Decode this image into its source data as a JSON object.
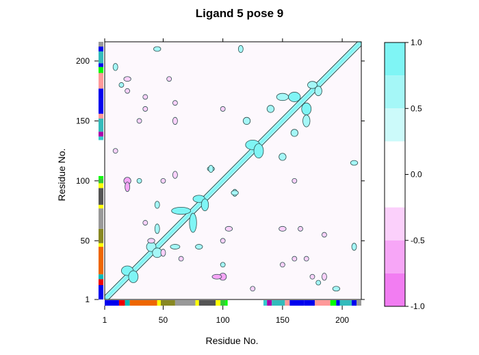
{
  "chart_data": {
    "type": "heatmap",
    "title": "Ligand 5 pose 9",
    "xlabel": "Residue No.",
    "ylabel": "Residue No.",
    "xlim": [
      1,
      216
    ],
    "ylim": [
      1,
      216
    ],
    "x_ticks": [
      1,
      50,
      100,
      150,
      200
    ],
    "y_ticks": [
      1,
      50,
      100,
      150,
      200
    ],
    "colorbar": {
      "range": [
        -1.0,
        1.0
      ],
      "ticks": [
        "1.0",
        "0.5",
        "0.0",
        "-0.5",
        "-1.0"
      ],
      "tick_values": [
        1.0,
        0.5,
        0.0,
        -0.5,
        -1.0
      ],
      "levels": [
        {
          "from": 0.75,
          "to": 1.0,
          "color": "#7ff5f5"
        },
        {
          "from": 0.5,
          "to": 0.75,
          "color": "#a5f7f7"
        },
        {
          "from": 0.25,
          "to": 0.5,
          "color": "#ccfafa"
        },
        {
          "from": -0.25,
          "to": 0.25,
          "color": "#ffffff"
        },
        {
          "from": -0.5,
          "to": -0.25,
          "color": "#fbd0fb"
        },
        {
          "from": -0.75,
          "to": -0.5,
          "color": "#f7a6f7"
        },
        {
          "from": -1.0,
          "to": -0.75,
          "color": "#f27df2"
        }
      ]
    },
    "background_color": "#fdf8fd",
    "contour_line_color": "#2f4f4f",
    "diagonal_band": {
      "from": 1,
      "to": 216,
      "value": 1.0
    },
    "positive_blobs": [
      {
        "x": 20,
        "y": 25,
        "rx": 5,
        "ry": 4,
        "value": 0.9
      },
      {
        "x": 40,
        "y": 45,
        "rx": 4,
        "ry": 4,
        "value": 0.7
      },
      {
        "x": 65,
        "y": 75,
        "rx": 8,
        "ry": 3,
        "value": 0.8
      },
      {
        "x": 80,
        "y": 85,
        "rx": 5,
        "ry": 3,
        "value": 0.8
      },
      {
        "x": 125,
        "y": 130,
        "rx": 6,
        "ry": 4,
        "value": 0.9
      },
      {
        "x": 160,
        "y": 170,
        "rx": 5,
        "ry": 4,
        "value": 0.9
      },
      {
        "x": 175,
        "y": 180,
        "rx": 4,
        "ry": 3,
        "value": 0.7
      },
      {
        "x": 170,
        "y": 150,
        "rx": 3,
        "ry": 5,
        "value": 0.6
      },
      {
        "x": 60,
        "y": 45,
        "rx": 4,
        "ry": 2,
        "value": 0.5
      },
      {
        "x": 90,
        "y": 110,
        "rx": 3,
        "ry": 2,
        "value": 0.5
      },
      {
        "x": 110,
        "y": 90,
        "rx": 3,
        "ry": 2,
        "value": 0.5
      },
      {
        "x": 150,
        "y": 120,
        "rx": 3,
        "ry": 3,
        "value": 0.5
      },
      {
        "x": 140,
        "y": 160,
        "rx": 3,
        "ry": 3,
        "value": 0.5
      },
      {
        "x": 210,
        "y": 115,
        "rx": 3,
        "ry": 2,
        "value": 0.5
      },
      {
        "x": 45,
        "y": 210,
        "rx": 3,
        "ry": 2,
        "value": 0.5
      },
      {
        "x": 195,
        "y": 10,
        "rx": 3,
        "ry": 2,
        "value": 0.5
      },
      {
        "x": 15,
        "y": 180,
        "rx": 2,
        "ry": 2,
        "value": 0.5
      },
      {
        "x": 80,
        "y": 45,
        "rx": 3,
        "ry": 2,
        "value": 0.5
      },
      {
        "x": 100,
        "y": 30,
        "rx": 2,
        "ry": 2,
        "value": 0.5
      }
    ],
    "negative_blobs": [
      {
        "x": 20,
        "y": 185,
        "rx": 3,
        "ry": 2,
        "value": -0.5
      },
      {
        "x": 35,
        "y": 160,
        "rx": 2,
        "ry": 2,
        "value": -0.5
      },
      {
        "x": 60,
        "y": 165,
        "rx": 2,
        "ry": 2,
        "value": -0.5
      },
      {
        "x": 100,
        "y": 160,
        "rx": 2,
        "ry": 2,
        "value": -0.5
      },
      {
        "x": 20,
        "y": 100,
        "rx": 3,
        "ry": 3,
        "value": -0.6
      },
      {
        "x": 50,
        "y": 100,
        "rx": 2,
        "ry": 2,
        "value": -0.5
      },
      {
        "x": 105,
        "y": 60,
        "rx": 3,
        "ry": 2,
        "value": -0.5
      },
      {
        "x": 150,
        "y": 60,
        "rx": 3,
        "ry": 2,
        "value": -0.5
      },
      {
        "x": 170,
        "y": 35,
        "rx": 2,
        "ry": 2,
        "value": -0.5
      },
      {
        "x": 95,
        "y": 20,
        "rx": 4,
        "ry": 2,
        "value": -0.6
      },
      {
        "x": 40,
        "y": 50,
        "rx": 3,
        "ry": 2,
        "value": -0.5
      },
      {
        "x": 185,
        "y": 55,
        "rx": 2,
        "ry": 2,
        "value": -0.5
      },
      {
        "x": 150,
        "y": 30,
        "rx": 2,
        "ry": 2,
        "value": -0.5
      },
      {
        "x": 175,
        "y": 20,
        "rx": 2,
        "ry": 2,
        "value": -0.5
      },
      {
        "x": 125,
        "y": 10,
        "rx": 2,
        "ry": 2,
        "value": -0.5
      },
      {
        "x": 65,
        "y": 35,
        "rx": 2,
        "ry": 2,
        "value": -0.5
      }
    ],
    "secondary_structure_bar": [
      {
        "from": 1,
        "to": 13,
        "color": "#0000ee"
      },
      {
        "from": 13,
        "to": 18,
        "color": "#ee0000"
      },
      {
        "from": 18,
        "to": 22,
        "color": "#00bbbb"
      },
      {
        "from": 22,
        "to": 45,
        "color": "#ee6600"
      },
      {
        "from": 45,
        "to": 48,
        "color": "#ffff00"
      },
      {
        "from": 48,
        "to": 60,
        "color": "#888822"
      },
      {
        "from": 60,
        "to": 77,
        "color": "#999999"
      },
      {
        "from": 77,
        "to": 80,
        "color": "#ffff00"
      },
      {
        "from": 80,
        "to": 94,
        "color": "#555555"
      },
      {
        "from": 94,
        "to": 98,
        "color": "#ffff00"
      },
      {
        "from": 98,
        "to": 102,
        "color": "#33cc33"
      },
      {
        "from": 102,
        "to": 104,
        "color": "#00ff00"
      },
      {
        "from": 134,
        "to": 137,
        "color": "#33cccc"
      },
      {
        "from": 137,
        "to": 141,
        "color": "#aa00aa"
      },
      {
        "from": 141,
        "to": 152,
        "color": "#33bbbb"
      },
      {
        "from": 152,
        "to": 156,
        "color": "#ff9999"
      },
      {
        "from": 156,
        "to": 168,
        "color": "#0000ee"
      },
      {
        "from": 168,
        "to": 177,
        "color": "#0000ee"
      },
      {
        "from": 177,
        "to": 190,
        "color": "#ff9999"
      },
      {
        "from": 190,
        "to": 195,
        "color": "#00ff00"
      },
      {
        "from": 195,
        "to": 198,
        "color": "#0000ee"
      },
      {
        "from": 198,
        "to": 208,
        "color": "#33bbbb"
      },
      {
        "from": 208,
        "to": 212,
        "color": "#0000ee"
      },
      {
        "from": 212,
        "to": 216,
        "color": "#999999"
      }
    ],
    "grid": false,
    "legend": "colorbar-right"
  }
}
